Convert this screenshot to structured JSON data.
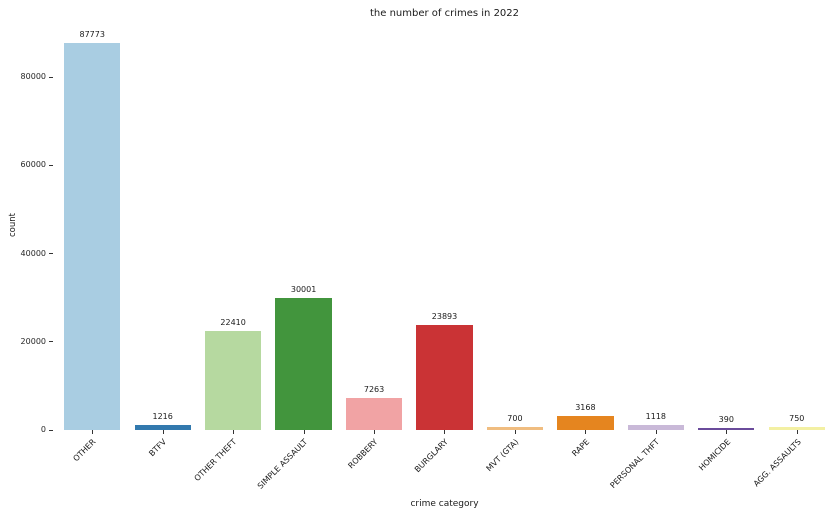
{
  "chart_data": {
    "type": "bar",
    "title": "the number of crimes in 2022",
    "xlabel": "crime category",
    "ylabel": "count",
    "categories": [
      "OTHER",
      "BTFV",
      "OTHER THEFT",
      "SIMPLE ASSAULT",
      "ROBBERY",
      "BURGLARY",
      "MVT (GTA)",
      "RAPE",
      "PERSONAL THFT",
      "HOMICIDE",
      "AGG. ASSAULTS"
    ],
    "values": [
      87773,
      1216,
      22410,
      30001,
      7263,
      23893,
      700,
      3168,
      1118,
      390,
      750
    ],
    "bar_colors": [
      "#a9cde2",
      "#3279ae",
      "#b6d9a0",
      "#42953d",
      "#f1a3a4",
      "#ca3335",
      "#f0bd80",
      "#e5851f",
      "#c9b9d8",
      "#6a4b9b",
      "#f3f0a3"
    ],
    "bar_labels": [
      87773,
      1216,
      22410,
      30001,
      7263,
      23893,
      700,
      3168,
      1118,
      390,
      750
    ],
    "yticks": [
      0,
      20000,
      40000,
      60000,
      80000
    ],
    "ylim": [
      0,
      93000
    ],
    "grid": false,
    "legend": null,
    "xtick_rotation": 45,
    "tick_color": "#333333",
    "text_color": "#1a1a1a"
  }
}
